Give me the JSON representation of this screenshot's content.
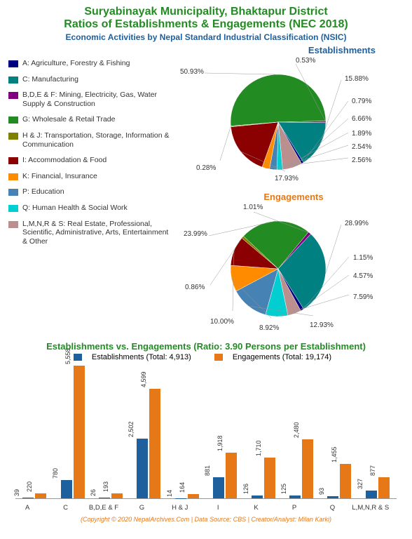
{
  "title_line1": "Suryabinayak Municipality, Bhaktapur District",
  "title_line2": "Ratios of Establishments & Engagements (NEC 2018)",
  "subtitle": "Economic Activities by Nepal Standard Industrial Classification (NSIC)",
  "legend_items": [
    {
      "color": "#000080",
      "label": "A: Agriculture, Forestry & Fishing"
    },
    {
      "color": "#008080",
      "label": "C: Manufacturing"
    },
    {
      "color": "#800080",
      "label": "B,D,E & F: Mining, Electricity, Gas, Water Supply & Construction"
    },
    {
      "color": "#228B22",
      "label": "G: Wholesale & Retail Trade"
    },
    {
      "color": "#808000",
      "label": "H & J: Transportation, Storage, Information & Communication"
    },
    {
      "color": "#8B0000",
      "label": "I: Accommodation & Food"
    },
    {
      "color": "#ff8c00",
      "label": "K: Financial, Insurance"
    },
    {
      "color": "#4682B4",
      "label": "P: Education"
    },
    {
      "color": "#00CED1",
      "label": "Q: Human Health & Social Work"
    },
    {
      "color": "#BC8F8F",
      "label": "L,M,N,R & S: Real Estate, Professional, Scientific, Administrative, Arts, Entertainment & Other"
    }
  ],
  "pie_est": {
    "title": "Establishments",
    "slices": [
      {
        "label": "50.93%",
        "value": 50.93,
        "color": "#228B22"
      },
      {
        "label": "0.53%",
        "value": 0.53,
        "color": "#800080"
      },
      {
        "label": "15.88%",
        "value": 15.88,
        "color": "#008080"
      },
      {
        "label": "0.79%",
        "value": 0.79,
        "color": "#000080"
      },
      {
        "label": "6.66%",
        "value": 6.66,
        "color": "#BC8F8F"
      },
      {
        "label": "1.89%",
        "value": 1.89,
        "color": "#00CED1"
      },
      {
        "label": "2.54%",
        "value": 2.54,
        "color": "#4682B4"
      },
      {
        "label": "2.56%",
        "value": 2.56,
        "color": "#ff8c00"
      },
      {
        "label": "17.93%",
        "value": 17.93,
        "color": "#8B0000"
      },
      {
        "label": "0.28%",
        "value": 0.28,
        "color": "#808000"
      }
    ]
  },
  "pie_eng": {
    "title": "Engagements",
    "slices": [
      {
        "label": "23.99%",
        "value": 23.99,
        "color": "#228B22"
      },
      {
        "label": "1.01%",
        "value": 1.01,
        "color": "#800080"
      },
      {
        "label": "28.99%",
        "value": 28.99,
        "color": "#008080"
      },
      {
        "label": "1.15%",
        "value": 1.15,
        "color": "#000080"
      },
      {
        "label": "4.57%",
        "value": 4.57,
        "color": "#BC8F8F"
      },
      {
        "label": "7.59%",
        "value": 7.59,
        "color": "#00CED1"
      },
      {
        "label": "12.93%",
        "value": 12.93,
        "color": "#4682B4"
      },
      {
        "label": "8.92%",
        "value": 8.92,
        "color": "#ff8c00"
      },
      {
        "label": "10.00%",
        "value": 10.0,
        "color": "#8B0000"
      },
      {
        "label": "0.86%",
        "value": 0.86,
        "color": "#808000"
      }
    ]
  },
  "bar": {
    "title": "Establishments vs. Engagements (Ratio: 3.90 Persons per Establishment)",
    "series1_label": "Establishments (Total: 4,913)",
    "series2_label": "Engagements (Total: 19,174)",
    "color1": "#1e5f9e",
    "color2": "#e67817",
    "ymax": 5600,
    "categories": [
      "A",
      "C",
      "B,D,E & F",
      "G",
      "H & J",
      "I",
      "K",
      "P",
      "Q",
      "L,M,N,R & S"
    ],
    "values1": [
      39,
      780,
      26,
      2502,
      14,
      881,
      126,
      125,
      93,
      327
    ],
    "values2": [
      220,
      5558,
      193,
      4599,
      164,
      1918,
      1710,
      2480,
      1455,
      877
    ]
  },
  "footer": "(Copyright © 2020 NepalArchives.Com | Data Source: CBS | Creator/Analyst: Milan Karki)"
}
